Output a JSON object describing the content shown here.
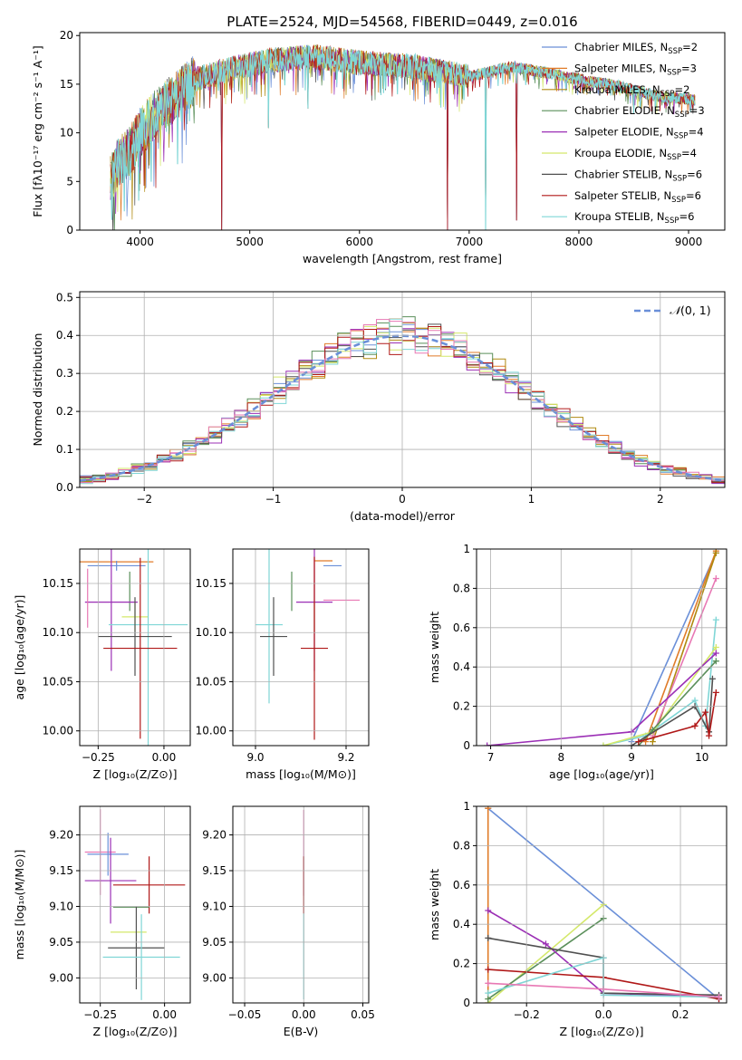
{
  "colors": {
    "c1": "#6a8fd8",
    "c2": "#e07b28",
    "c3": "#b08a10",
    "c4": "#5a8f5a",
    "c5": "#9b2fb5",
    "c6": "#d4e86a",
    "c7": "#505050",
    "c8": "#b01818",
    "c9": "#7fd6d6",
    "pink": "#e878b4"
  },
  "chart_data": [
    {
      "id": "spectrum",
      "type": "line",
      "title": "PLATE=2524, MJD=54568, FIBERID=0449, z=0.016",
      "xlabel": "wavelength [Angstrom, rest frame]",
      "ylabel": "Flux [fλ10⁻¹⁷ erg cm⁻² s⁻¹ A⁻¹]",
      "xlim": [
        3450,
        9330
      ],
      "ylim": [
        0,
        20.3
      ],
      "xticks": [
        4000,
        5000,
        6000,
        7000,
        8000,
        9000
      ],
      "yticks": [
        0,
        5,
        10,
        15,
        20
      ],
      "legend_position": "upper-right",
      "spectrum_x_range": [
        3730,
        9060
      ],
      "continuum": [
        [
          3730,
          5
        ],
        [
          3800,
          7
        ],
        [
          3900,
          8
        ],
        [
          4000,
          10
        ],
        [
          4100,
          11.5
        ],
        [
          4300,
          13.5
        ],
        [
          4500,
          15.5
        ],
        [
          4800,
          16.5
        ],
        [
          5200,
          17.5
        ],
        [
          5600,
          17.8
        ],
        [
          6000,
          17.2
        ],
        [
          6500,
          16.8
        ],
        [
          7000,
          15.8
        ],
        [
          7400,
          16.8
        ],
        [
          8000,
          15.5
        ],
        [
          8400,
          14.7
        ],
        [
          8700,
          13.8
        ],
        [
          9060,
          13.4
        ]
      ],
      "dips": [
        [
          4745,
          0
        ],
        [
          5170,
          10.5
        ],
        [
          5530,
          12.5
        ],
        [
          6800,
          0
        ],
        [
          7150,
          0
        ],
        [
          7430,
          1
        ],
        [
          8500,
          12
        ],
        [
          8660,
          12.2
        ]
      ],
      "series": [
        {
          "name": "Chabrier MILES, N_SSP=2",
          "label_main": "Chabrier MILES, N",
          "label_sub": "SSP",
          "label_tail": "=2",
          "color": "c1"
        },
        {
          "name": "Salpeter MILES, N_SSP=3",
          "label_main": "Salpeter MILES, N",
          "label_sub": "SSP",
          "label_tail": "=3",
          "color": "c2"
        },
        {
          "name": "Kroupa MILES, N_SSP=2",
          "label_main": "Kroupa MILES, N",
          "label_sub": "SSP",
          "label_tail": "=2",
          "color": "c3"
        },
        {
          "name": "Chabrier ELODIE, N_SSP=3",
          "label_main": "Chabrier ELODIE, N",
          "label_sub": "SSP",
          "label_tail": "=3",
          "color": "c4"
        },
        {
          "name": "Salpeter ELODIE, N_SSP=4",
          "label_main": "Salpeter ELODIE, N",
          "label_sub": "SSP",
          "label_tail": "=4",
          "color": "c5"
        },
        {
          "name": "Kroupa ELODIE, N_SSP=4",
          "label_main": "Kroupa ELODIE, N",
          "label_sub": "SSP",
          "label_tail": "=4",
          "color": "c6"
        },
        {
          "name": "Chabrier STELIB, N_SSP=6",
          "label_main": "Chabrier STELIB, N",
          "label_sub": "SSP",
          "label_tail": "=6",
          "color": "c7"
        },
        {
          "name": "Salpeter STELIB, N_SSP=6",
          "label_main": "Salpeter STELIB, N",
          "label_sub": "SSP",
          "label_tail": "=6",
          "color": "c8"
        },
        {
          "name": "Kroupa STELIB, N_SSP=6",
          "label_main": "Kroupa STELIB, N",
          "label_sub": "SSP",
          "label_tail": "=6",
          "color": "c9"
        }
      ]
    },
    {
      "id": "residuals",
      "type": "histogram",
      "xlabel": "(data-model)/error",
      "ylabel": "Normed distribution",
      "xlim": [
        -2.5,
        2.5
      ],
      "ylim": [
        0,
        0.515
      ],
      "xticks": [
        -2,
        -1,
        0,
        1,
        2
      ],
      "yticks": [
        0.0,
        0.1,
        0.2,
        0.3,
        0.4,
        0.5
      ],
      "grid": true,
      "bin_width": 0.1,
      "bin_range": [
        -2.5,
        2.5
      ],
      "reference_curve": {
        "label": "N(0,1)",
        "label_text": "(0, 1)",
        "color": "c1",
        "style": "dashed"
      },
      "hist_colors": [
        "c1",
        "c2",
        "c3",
        "c4",
        "c5",
        "c6",
        "c7",
        "c8",
        "c9",
        "pink"
      ],
      "legend_position": "upper-right"
    },
    {
      "id": "age-vs-Z",
      "type": "errorbar",
      "xlabel": "Z [log₁₀(Z/Z⊙)]",
      "ylabel": "age  [log₁₀(age/yr)]",
      "xlim": [
        -0.32,
        0.1
      ],
      "ylim": [
        9.985,
        10.185
      ],
      "xticks": [
        -0.25,
        0.0
      ],
      "xtick_labels": [
        "−0.25",
        "0.00"
      ],
      "yticks": [
        10.0,
        10.05,
        10.1,
        10.15
      ],
      "ytick_labels": [
        "10.00",
        "10.05",
        "10.10",
        "10.15"
      ],
      "grid": true,
      "points": [
        {
          "color": "c2",
          "x": -0.18,
          "xe": 0.14,
          "y": 10.172,
          "ye": 0.0
        },
        {
          "color": "c1",
          "x": -0.18,
          "xe": 0.11,
          "y": 10.168,
          "ye": 0.005
        },
        {
          "color": "c4",
          "x": -0.13,
          "xe": 0.0,
          "y": 10.142,
          "ye": 0.02
        },
        {
          "color": "c5",
          "x": -0.2,
          "xe": 0.1,
          "y": 10.131,
          "ye": 0.07
        },
        {
          "color": "c6",
          "x": -0.11,
          "xe": 0.05,
          "y": 10.116,
          "ye": 0.015
        },
        {
          "color": "c9",
          "x": -0.06,
          "xe": 0.15,
          "y": 10.108,
          "ye": 0.135
        },
        {
          "color": "c7",
          "x": -0.11,
          "xe": 0.14,
          "y": 10.096,
          "ye": 0.04
        },
        {
          "color": "c8",
          "x": -0.09,
          "xe": 0.14,
          "y": 10.084,
          "ye": 0.092
        },
        {
          "color": "pink",
          "x": -0.29,
          "xe": 0.0,
          "y": 10.135,
          "ye": 0.03
        }
      ]
    },
    {
      "id": "age-vs-mass",
      "type": "errorbar",
      "xlabel": "mass [log₁₀(M/M⊙)]",
      "xlim": [
        8.95,
        9.25
      ],
      "ylim": [
        9.985,
        10.185
      ],
      "xticks": [
        9.0,
        9.2
      ],
      "xtick_labels": [
        "9.0",
        "9.2"
      ],
      "yticks": [
        10.0,
        10.05,
        10.1,
        10.15
      ],
      "ytick_labels": [
        "10.00",
        "10.05",
        "10.10",
        "10.15"
      ],
      "grid": true,
      "points": [
        {
          "color": "c2",
          "x": 9.15,
          "xe": 0.02,
          "y": 10.173,
          "ye": 0.0
        },
        {
          "color": "c1",
          "x": 9.17,
          "xe": 0.02,
          "y": 10.168,
          "ye": 0.0
        },
        {
          "color": "pink",
          "x": 9.19,
          "xe": 0.04,
          "y": 10.133,
          "ye": 0.0
        },
        {
          "color": "c4",
          "x": 9.08,
          "xe": 0.0,
          "y": 10.142,
          "ye": 0.02
        },
        {
          "color": "c5",
          "x": 9.13,
          "xe": 0.04,
          "y": 10.131,
          "ye": 0.07
        },
        {
          "color": "c6",
          "x": 9.13,
          "xe": 0.0,
          "y": 10.116,
          "ye": 0.015
        },
        {
          "color": "c9",
          "x": 9.03,
          "xe": 0.03,
          "y": 10.108,
          "ye": 0.08
        },
        {
          "color": "c7",
          "x": 9.04,
          "xe": 0.03,
          "y": 10.096,
          "ye": 0.04
        },
        {
          "color": "c8",
          "x": 9.13,
          "xe": 0.03,
          "y": 10.084,
          "ye": 0.093
        }
      ]
    },
    {
      "id": "weight-vs-age",
      "type": "line",
      "xlabel": "age  [log₁₀(age/yr)]",
      "ylabel": "mass weight",
      "xlim": [
        6.8,
        10.35
      ],
      "ylim": [
        0,
        1.0
      ],
      "xticks": [
        7,
        8,
        9,
        10
      ],
      "yticks": [
        0.0,
        0.2,
        0.4,
        0.6,
        0.8,
        1.0
      ],
      "grid": true,
      "series": [
        {
          "color": "c1",
          "points": [
            [
              9.0,
              0.02
            ],
            [
              10.2,
              0.98
            ]
          ]
        },
        {
          "color": "c2",
          "points": [
            [
              9.2,
              0.02
            ],
            [
              10.2,
              0.99
            ]
          ]
        },
        {
          "color": "c3",
          "points": [
            [
              9.3,
              0.02
            ],
            [
              10.2,
              0.98
            ]
          ]
        },
        {
          "color": "pink",
          "points": [
            [
              9.3,
              0.05
            ],
            [
              10.2,
              0.85
            ]
          ]
        },
        {
          "color": "c9",
          "points": [
            [
              8.6,
              0.0
            ],
            [
              9.2,
              0.05
            ],
            [
              9.9,
              0.23
            ],
            [
              10.05,
              0.1
            ],
            [
              10.2,
              0.64
            ]
          ]
        },
        {
          "color": "c6",
          "points": [
            [
              8.6,
              0.0
            ],
            [
              9.3,
              0.07
            ],
            [
              10.2,
              0.5
            ]
          ]
        },
        {
          "color": "c5",
          "points": [
            [
              6.95,
              0.0
            ],
            [
              9.0,
              0.07
            ],
            [
              10.2,
              0.47
            ]
          ]
        },
        {
          "color": "c4",
          "points": [
            [
              9.1,
              0.0
            ],
            [
              9.3,
              0.08
            ],
            [
              10.2,
              0.43
            ]
          ]
        },
        {
          "color": "c7",
          "points": [
            [
              9.0,
              0.0
            ],
            [
              9.9,
              0.2
            ],
            [
              10.1,
              0.07
            ],
            [
              10.15,
              0.34
            ]
          ]
        },
        {
          "color": "c8",
          "points": [
            [
              9.1,
              0.02
            ],
            [
              9.9,
              0.1
            ],
            [
              10.05,
              0.17
            ],
            [
              10.1,
              0.05
            ],
            [
              10.2,
              0.27
            ]
          ]
        }
      ]
    },
    {
      "id": "mass-vs-Z",
      "type": "errorbar",
      "xlabel": "Z [log₁₀(Z/Z⊙)]",
      "ylabel": "mass [log₁₀(M/M⊙)]",
      "xlim": [
        -0.33,
        0.1
      ],
      "ylim": [
        8.965,
        9.24
      ],
      "xticks": [
        -0.25,
        0.0
      ],
      "xtick_labels": [
        "−0.25",
        "0.00"
      ],
      "yticks": [
        9.0,
        9.05,
        9.1,
        9.15,
        9.2
      ],
      "ytick_labels": [
        "9.00",
        "9.05",
        "9.10",
        "9.15",
        "9.20"
      ],
      "grid": true,
      "points": [
        {
          "color": "pink",
          "x": -0.25,
          "xe": 0.06,
          "y": 9.176,
          "ye": 0.06
        },
        {
          "color": "c1",
          "x": -0.22,
          "xe": 0.08,
          "y": 9.173,
          "ye": 0.03
        },
        {
          "color": "c5",
          "x": -0.21,
          "xe": 0.1,
          "y": 9.136,
          "ye": 0.06
        },
        {
          "color": "c8",
          "x": -0.06,
          "xe": 0.14,
          "y": 9.13,
          "ye": 0.04
        },
        {
          "color": "c4",
          "x": -0.13,
          "xe": 0.07,
          "y": 9.099,
          "ye": 0.0
        },
        {
          "color": "c6",
          "x": -0.14,
          "xe": 0.07,
          "y": 9.064,
          "ye": 0.0
        },
        {
          "color": "c7",
          "x": -0.11,
          "xe": 0.11,
          "y": 9.042,
          "ye": 0.058
        },
        {
          "color": "c9",
          "x": -0.09,
          "xe": 0.15,
          "y": 9.029,
          "ye": 0.06
        }
      ]
    },
    {
      "id": "mass-vs-EBV",
      "type": "errorbar",
      "xlabel": "E(B-V)",
      "xlim": [
        -0.06,
        0.055
      ],
      "ylim": [
        8.965,
        9.24
      ],
      "xticks": [
        -0.05,
        0.0,
        0.05
      ],
      "xtick_labels": [
        "−0.05",
        "0.00",
        "0.05"
      ],
      "yticks": [
        9.0,
        9.05,
        9.1,
        9.15,
        9.2
      ],
      "ytick_labels": [
        "9.00",
        "9.05",
        "9.10",
        "9.15",
        "9.20"
      ],
      "grid": true,
      "points": [
        {
          "color": "pink",
          "x": 0.0,
          "xe": 0.0,
          "y": 9.175,
          "ye": 0.06
        },
        {
          "color": "c8",
          "x": 0.0,
          "xe": 0.0,
          "y": 9.13,
          "ye": 0.04
        },
        {
          "color": "c9",
          "x": 0.0,
          "xe": 0.0,
          "y": 9.03,
          "ye": 0.06
        }
      ]
    },
    {
      "id": "weight-vs-Z",
      "type": "line",
      "xlabel": "Z [log₁₀(Z/Z⊙)]",
      "ylabel": "mass weight",
      "xlim": [
        -0.33,
        0.32
      ],
      "ylim": [
        0,
        1.0
      ],
      "xticks": [
        -0.2,
        0.0,
        0.2
      ],
      "xtick_labels": [
        "−0.2",
        "0.0",
        "0.2"
      ],
      "yticks": [
        0.0,
        0.2,
        0.4,
        0.6,
        0.8,
        1.0
      ],
      "grid": true,
      "series": [
        {
          "color": "c1",
          "points": [
            [
              -0.3,
              0.99
            ],
            [
              0.3,
              0.02
            ]
          ]
        },
        {
          "color": "c2",
          "points": [
            [
              -0.3,
              0.99
            ],
            [
              -0.3,
              0.0
            ]
          ]
        },
        {
          "color": "c6",
          "points": [
            [
              -0.3,
              0.0
            ],
            [
              0.0,
              0.5
            ]
          ]
        },
        {
          "color": "c4",
          "points": [
            [
              -0.3,
              0.02
            ],
            [
              0.0,
              0.43
            ]
          ]
        },
        {
          "color": "c5",
          "points": [
            [
              -0.3,
              0.47
            ],
            [
              -0.15,
              0.3
            ],
            [
              0.0,
              0.05
            ],
            [
              0.3,
              0.03
            ]
          ]
        },
        {
          "color": "c7",
          "points": [
            [
              -0.3,
              0.33
            ],
            [
              0.0,
              0.23
            ],
            [
              0.0,
              0.05
            ],
            [
              0.3,
              0.04
            ]
          ]
        },
        {
          "color": "c8",
          "points": [
            [
              -0.3,
              0.17
            ],
            [
              0.0,
              0.13
            ],
            [
              0.3,
              0.02
            ]
          ]
        },
        {
          "color": "c9",
          "points": [
            [
              -0.3,
              0.05
            ],
            [
              0.0,
              0.23
            ],
            [
              0.0,
              0.04
            ],
            [
              0.3,
              0.03
            ]
          ]
        },
        {
          "color": "pink",
          "points": [
            [
              -0.3,
              0.1
            ],
            [
              0.0,
              0.07
            ],
            [
              0.3,
              0.03
            ]
          ]
        }
      ]
    }
  ]
}
